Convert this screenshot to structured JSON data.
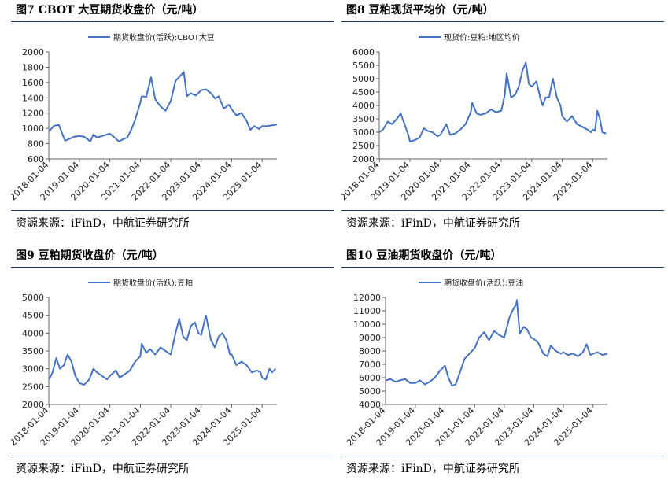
{
  "charts": [
    {
      "figure_title": "图7 CBOT 大豆期货收盘价（元/吨）",
      "source": "资源来源：iFinD，中航证券研究所",
      "series_color": "#4472c4",
      "chart_data": {
        "type": "line",
        "legend": "期货收盘价(活跃):CBOT大豆",
        "legend_position": "top",
        "grid": false,
        "x_ticks": [
          "2018-01-04",
          "2019-01-04",
          "2020-01-04",
          "2021-01-04",
          "2022-01-04",
          "2023-01-04",
          "2024-01-04",
          "2025-01-04"
        ],
        "y_ticks": [
          600,
          800,
          1000,
          1200,
          1400,
          1600,
          1800,
          2000
        ],
        "ylim": [
          600,
          2000
        ],
        "xlim": [
          "2018-01-01",
          "2025-06-30"
        ],
        "series": [
          {
            "name": "期货收盘价(活跃):CBOT大豆",
            "x": [
              "2018-01-04",
              "2018-03-01",
              "2018-05-01",
              "2018-06-15",
              "2018-07-15",
              "2018-09-01",
              "2018-11-01",
              "2019-01-04",
              "2019-03-01",
              "2019-05-15",
              "2019-06-20",
              "2019-08-01",
              "2019-10-01",
              "2019-12-01",
              "2020-01-04",
              "2020-03-01",
              "2020-04-20",
              "2020-06-15",
              "2020-08-01",
              "2020-09-15",
              "2020-11-01",
              "2021-01-04",
              "2021-01-20",
              "2021-03-15",
              "2021-05-12",
              "2021-07-01",
              "2021-09-01",
              "2021-11-01",
              "2022-01-04",
              "2022-03-01",
              "2022-05-01",
              "2022-06-09",
              "2022-07-15",
              "2022-09-01",
              "2022-11-01",
              "2023-01-04",
              "2023-03-01",
              "2023-05-01",
              "2023-06-20",
              "2023-08-01",
              "2023-10-01",
              "2023-12-01",
              "2024-01-04",
              "2024-03-01",
              "2024-05-01",
              "2024-07-01",
              "2024-08-15",
              "2024-10-01",
              "2024-12-01",
              "2025-01-04",
              "2025-03-01",
              "2025-05-01",
              "2025-06-30"
            ],
            "y": [
              960,
              1030,
              1050,
              920,
              840,
              860,
              890,
              900,
              890,
              830,
              920,
              880,
              900,
              920,
              930,
              880,
              830,
              860,
              880,
              980,
              1110,
              1340,
              1420,
              1410,
              1670,
              1380,
              1290,
              1230,
              1360,
              1620,
              1690,
              1740,
              1420,
              1460,
              1430,
              1500,
              1510,
              1460,
              1390,
              1420,
              1260,
              1310,
              1250,
              1170,
              1200,
              1100,
              980,
              1030,
              990,
              1030,
              1030,
              1040,
              1050
            ]
          }
        ]
      }
    },
    {
      "figure_title": "图8 豆粕现货平均价（元/吨）",
      "source": "资源来源：iFinD，中航证券研究所",
      "series_color": "#4472c4",
      "chart_data": {
        "type": "line",
        "legend": "现货价:豆粕:地区均价",
        "legend_position": "top",
        "grid": false,
        "x_ticks": [
          "2018-01-04",
          "2019-01-04",
          "2020-01-04",
          "2021-01-04",
          "2022-01-04",
          "2023-01-04",
          "2024-01-04",
          "2025-01-04"
        ],
        "y_ticks": [
          2000,
          2500,
          3000,
          3500,
          4000,
          4500,
          5000,
          5500,
          6000
        ],
        "ylim": [
          2000,
          6000
        ],
        "xlim": [
          "2018-01-01",
          "2025-06-30"
        ],
        "series": [
          {
            "name": "现货价:豆粕:地区均价",
            "x": [
              "2018-01-04",
              "2018-02-15",
              "2018-04-15",
              "2018-06-01",
              "2018-08-01",
              "2018-09-15",
              "2018-11-01",
              "2018-12-15",
              "2019-01-04",
              "2019-03-01",
              "2019-05-01",
              "2019-06-20",
              "2019-08-01",
              "2019-10-01",
              "2019-12-01",
              "2020-01-04",
              "2020-03-15",
              "2020-05-01",
              "2020-07-01",
              "2020-09-01",
              "2020-11-01",
              "2021-01-04",
              "2021-01-20",
              "2021-03-15",
              "2021-05-01",
              "2021-07-01",
              "2021-09-01",
              "2021-11-01",
              "2022-01-04",
              "2022-02-15",
              "2022-03-10",
              "2022-05-01",
              "2022-06-20",
              "2022-08-01",
              "2022-09-15",
              "2022-10-25",
              "2022-12-01",
              "2023-01-04",
              "2023-03-01",
              "2023-04-15",
              "2023-05-15",
              "2023-06-20",
              "2023-08-01",
              "2023-09-15",
              "2023-11-01",
              "2023-12-15",
              "2024-01-04",
              "2024-03-01",
              "2024-05-01",
              "2024-07-01",
              "2024-09-01",
              "2024-11-01",
              "2024-12-15",
              "2025-01-04",
              "2025-02-01",
              "2025-03-01",
              "2025-04-01",
              "2025-05-01",
              "2025-06-15"
            ],
            "y": [
              3000,
              3100,
              3400,
              3300,
              3500,
              3700,
              3300,
              2900,
              2650,
              2700,
              2800,
              3150,
              3050,
              3000,
              2850,
              2900,
              3300,
              2900,
              2950,
              3100,
              3300,
              3750,
              4100,
              3700,
              3650,
              3700,
              3850,
              3750,
              3800,
              4400,
              5200,
              4300,
              4400,
              4700,
              5300,
              5600,
              4800,
              4700,
              4900,
              4300,
              4000,
              4300,
              4300,
              5000,
              4300,
              4000,
              3600,
              3400,
              3600,
              3300,
              3200,
              3100,
              3000,
              3100,
              3050,
              3800,
              3500,
              3000,
              2950
            ]
          }
        ]
      }
    },
    {
      "figure_title": "图9 豆粕期货收盘价（元/吨）",
      "source": "资源来源：iFinD，中航证券研究所",
      "series_color": "#4472c4",
      "chart_data": {
        "type": "line",
        "legend": "期货收盘价(活跃):豆粕",
        "legend_position": "top",
        "grid": false,
        "x_ticks": [
          "2018-01-04",
          "2019-01-04",
          "2020-01-04",
          "2021-01-04",
          "2022-01-04",
          "2023-01-04",
          "2024-01-04",
          "2025-01-04"
        ],
        "y_ticks": [
          2000,
          2500,
          3000,
          3500,
          4000,
          4500,
          5000
        ],
        "ylim": [
          2000,
          5000
        ],
        "xlim": [
          "2018-01-01",
          "2025-06-30"
        ],
        "series": [
          {
            "name": "期货收盘价(活跃):豆粕",
            "x": [
              "2018-01-04",
              "2018-02-15",
              "2018-04-01",
              "2018-05-15",
              "2018-07-01",
              "2018-08-15",
              "2018-10-01",
              "2018-11-15",
              "2019-01-04",
              "2019-03-01",
              "2019-05-01",
              "2019-06-20",
              "2019-08-01",
              "2019-10-01",
              "2019-12-01",
              "2020-01-04",
              "2020-03-15",
              "2020-05-01",
              "2020-07-01",
              "2020-09-01",
              "2020-11-01",
              "2021-01-04",
              "2021-01-20",
              "2021-03-15",
              "2021-05-01",
              "2021-07-01",
              "2021-09-01",
              "2021-11-01",
              "2022-01-04",
              "2022-03-01",
              "2022-04-15",
              "2022-06-01",
              "2022-07-15",
              "2022-09-01",
              "2022-10-20",
              "2022-12-01",
              "2023-01-04",
              "2023-03-01",
              "2023-05-01",
              "2023-06-15",
              "2023-08-01",
              "2023-09-15",
              "2023-11-01",
              "2023-12-15",
              "2024-01-04",
              "2024-03-01",
              "2024-05-01",
              "2024-07-01",
              "2024-09-01",
              "2024-11-01",
              "2024-12-15",
              "2025-01-04",
              "2025-02-15",
              "2025-04-01",
              "2025-05-01",
              "2025-06-15"
            ],
            "y": [
              2700,
              2900,
              3300,
              3000,
              3100,
              3400,
              3200,
              2800,
              2600,
              2550,
              2700,
              3000,
              2900,
              2800,
              2700,
              2800,
              2950,
              2750,
              2850,
              2950,
              3200,
              3350,
              3700,
              3450,
              3550,
              3400,
              3600,
              3500,
              3400,
              4000,
              4400,
              3900,
              3800,
              4200,
              4300,
              4000,
              3950,
              4500,
              3800,
              3600,
              3900,
              4000,
              3800,
              3400,
              3400,
              3100,
              3200,
              3100,
              2900,
              2950,
              2900,
              2750,
              2700,
              3000,
              2900,
              3000
            ]
          }
        ]
      }
    },
    {
      "figure_title": "图10 豆油期货收盘价（元/吨）",
      "source": "资源来源：iFinD，中航证券研究所",
      "series_color": "#4472c4",
      "chart_data": {
        "type": "line",
        "legend": "期货收盘价(活跃):豆油",
        "legend_position": "top",
        "grid": false,
        "x_ticks": [
          "2018-01-04",
          "2019-01-04",
          "2020-01-04",
          "2021-01-04",
          "2022-01-04",
          "2023-01-04",
          "2024-01-04",
          "2025-01-04"
        ],
        "y_ticks": [
          4000,
          5000,
          6000,
          7000,
          8000,
          9000,
          10000,
          11000,
          12000
        ],
        "ylim": [
          4000,
          12000
        ],
        "xlim": [
          "2018-01-01",
          "2025-06-30"
        ],
        "series": [
          {
            "name": "期货收盘价(活跃):豆油",
            "x": [
              "2018-01-04",
              "2018-03-01",
              "2018-05-01",
              "2018-07-01",
              "2018-09-01",
              "2018-11-01",
              "2019-01-04",
              "2019-03-01",
              "2019-05-01",
              "2019-07-01",
              "2019-09-01",
              "2019-11-01",
              "2020-01-04",
              "2020-02-15",
              "2020-04-01",
              "2020-05-15",
              "2020-07-01",
              "2020-09-01",
              "2020-11-01",
              "2021-01-04",
              "2021-03-01",
              "2021-05-01",
              "2021-07-01",
              "2021-09-01",
              "2021-11-01",
              "2022-01-04",
              "2022-03-10",
              "2022-04-15",
              "2022-06-01",
              "2022-06-09",
              "2022-07-15",
              "2022-09-01",
              "2022-10-15",
              "2022-12-01",
              "2023-01-04",
              "2023-03-01",
              "2023-05-01",
              "2023-06-20",
              "2023-08-01",
              "2023-10-01",
              "2023-12-01",
              "2024-01-04",
              "2024-03-01",
              "2024-05-01",
              "2024-07-01",
              "2024-09-01",
              "2024-10-15",
              "2024-12-01",
              "2025-01-04",
              "2025-03-01",
              "2025-05-01",
              "2025-06-30"
            ],
            "y": [
              5800,
              5900,
              5700,
              5800,
              5900,
              5600,
              5600,
              5800,
              5500,
              5700,
              6000,
              6500,
              6900,
              6000,
              5400,
              5500,
              6300,
              7400,
              7800,
              8200,
              9000,
              9400,
              8800,
              9500,
              9200,
              9000,
              10500,
              11000,
              11500,
              11800,
              9300,
              9800,
              9600,
              9000,
              8900,
              8600,
              7800,
              7600,
              8400,
              8000,
              7800,
              7900,
              7700,
              7800,
              7600,
              7900,
              8500,
              7700,
              7800,
              7900,
              7700,
              7800
            ]
          }
        ]
      }
    }
  ]
}
